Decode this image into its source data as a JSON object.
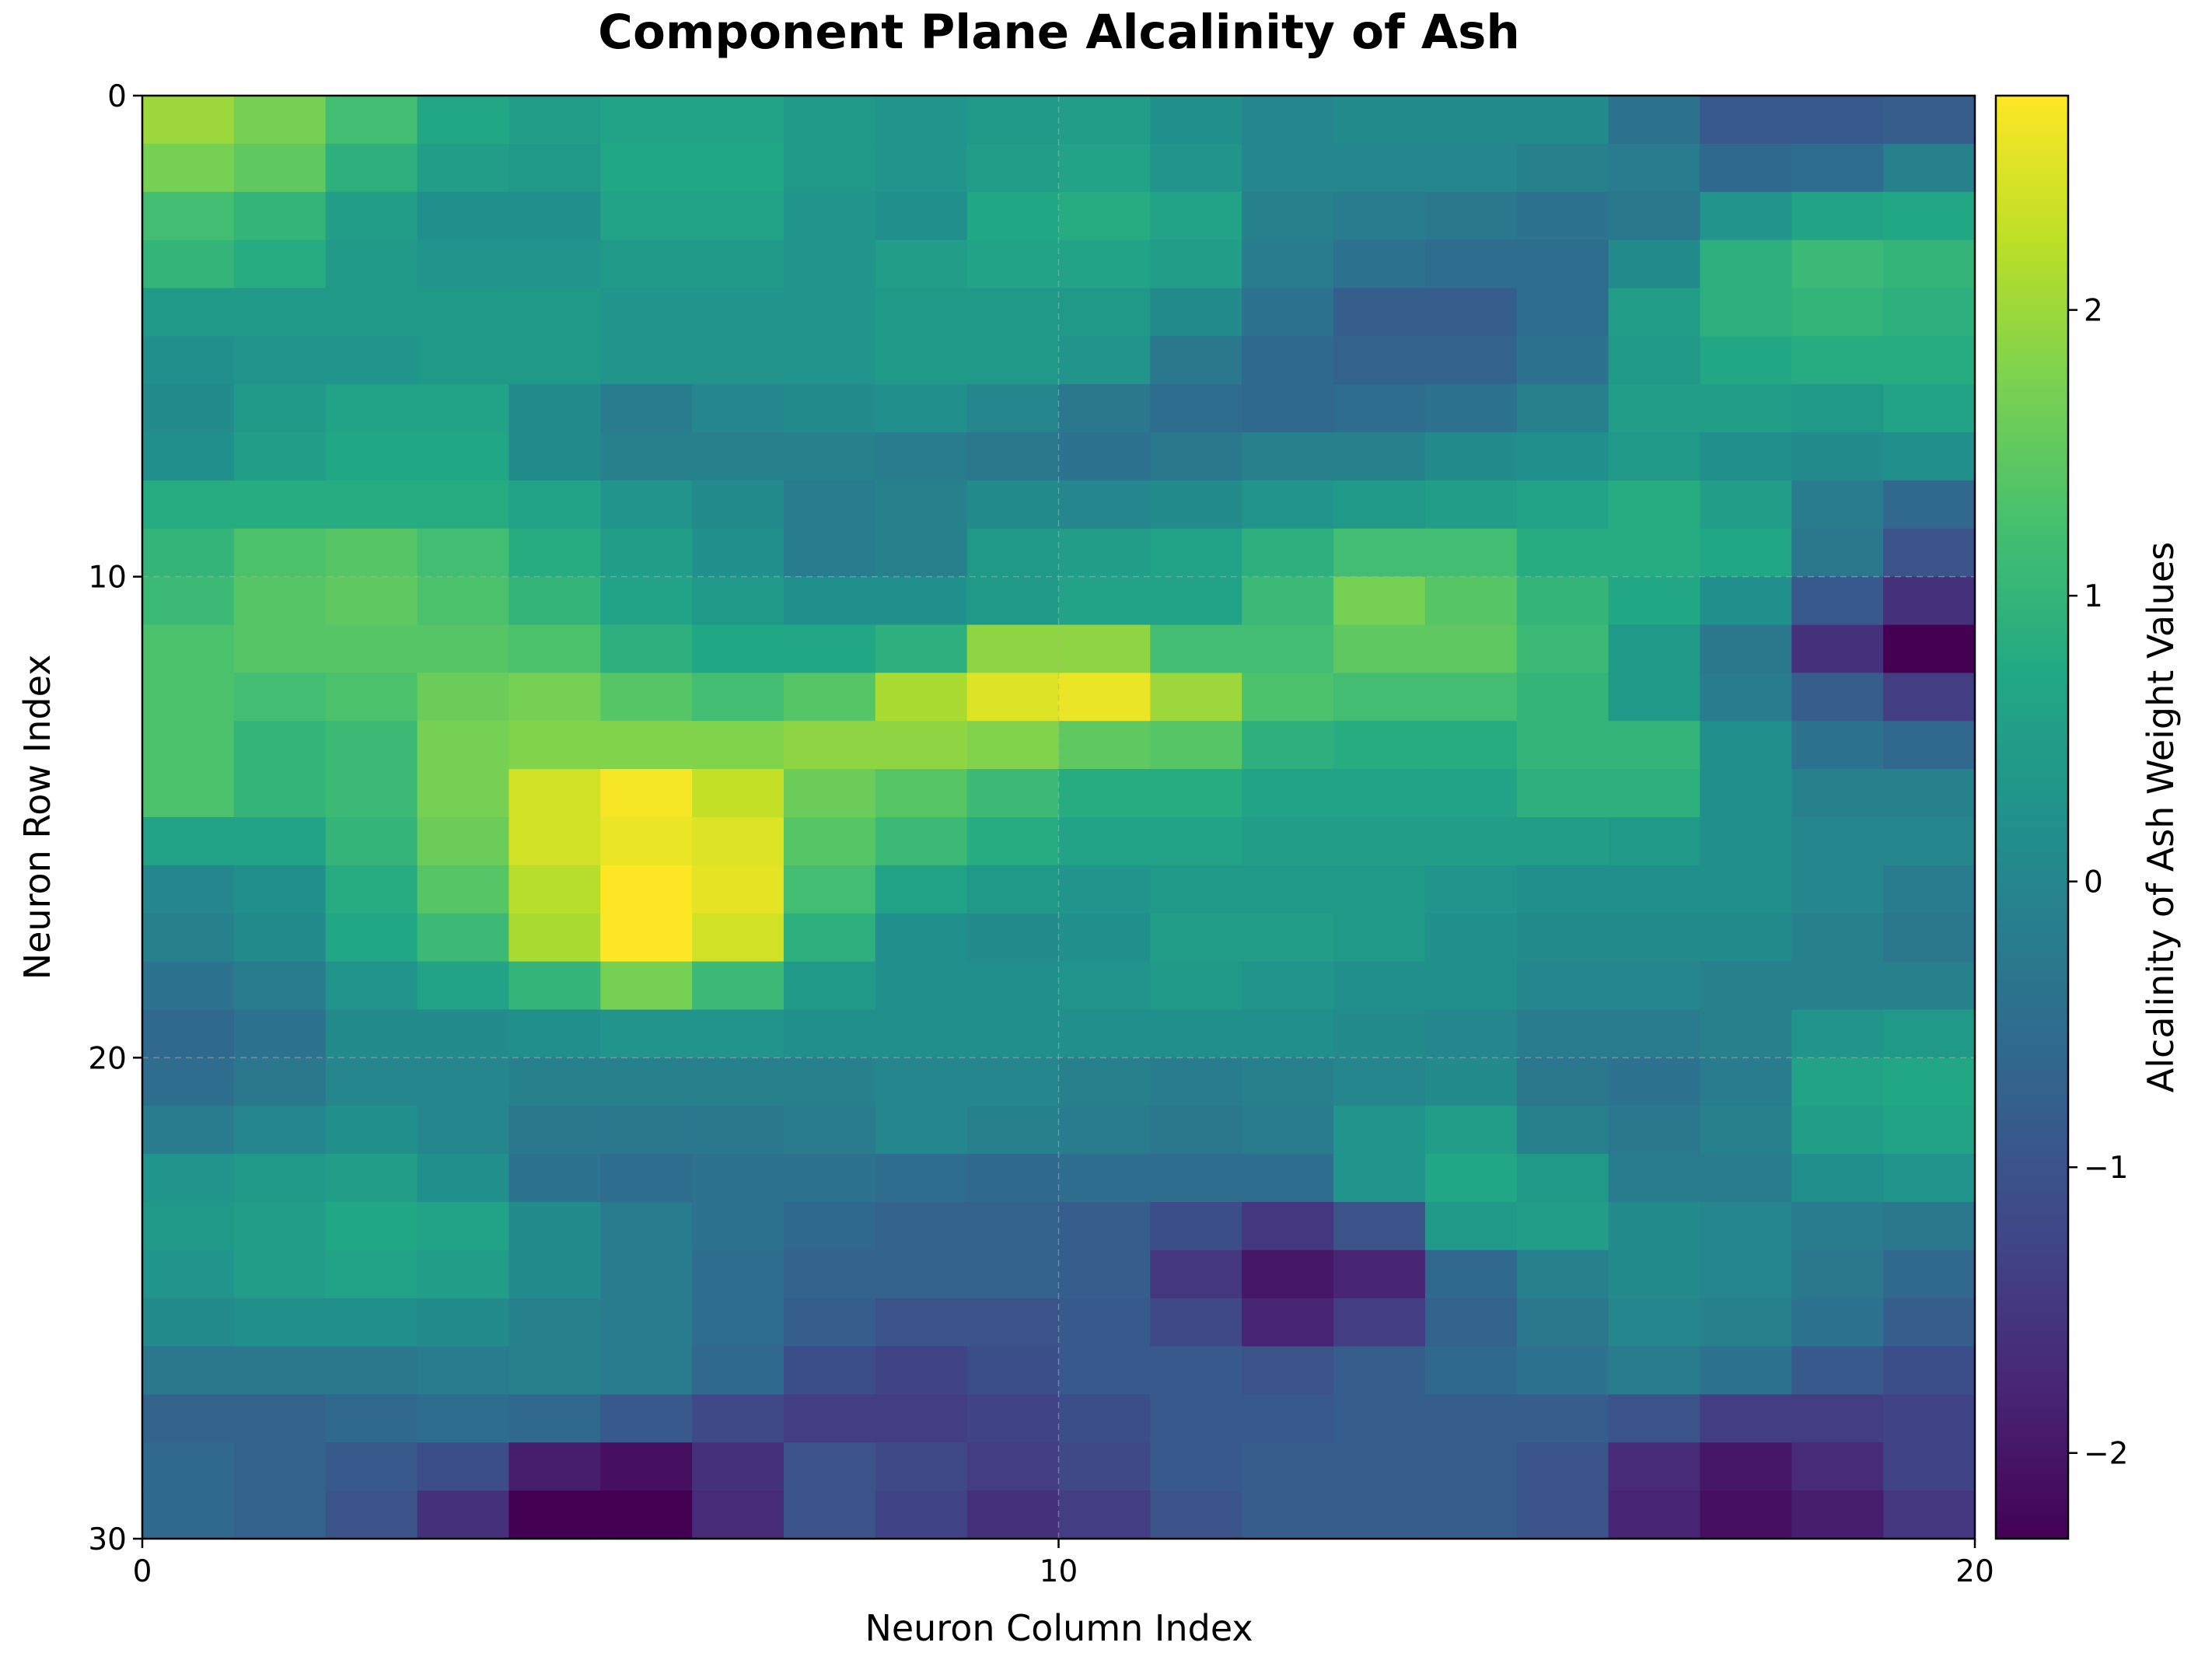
{
  "chart_data": {
    "type": "heatmap",
    "title": "Component Plane Alcalinity of Ash",
    "xlabel": "Neuron Column Index",
    "ylabel": "Neuron Row Index",
    "colorbar_label": "Alcalinity of Ash Weight Values",
    "colormap": "viridis",
    "x_ticks": [
      "0",
      "10",
      "20"
    ],
    "y_ticks": [
      "0",
      "10",
      "20",
      "30"
    ],
    "colorbar_ticks": [
      "−2",
      "−1",
      "0",
      "1",
      "2"
    ],
    "colorbar_tick_values": [
      -2,
      -1,
      0,
      1,
      2
    ],
    "vmin": -2.3,
    "vmax": 2.75,
    "xlim": [
      0,
      20
    ],
    "ylim": [
      30,
      0
    ],
    "grid": true,
    "rows": 30,
    "cols": 20,
    "values": [
      [
        2.0,
        1.7,
        1.2,
        0.7,
        0.5,
        0.6,
        0.6,
        0.4,
        0.3,
        0.4,
        0.5,
        0.2,
        0.0,
        0.1,
        0.1,
        0.1,
        -0.4,
        -0.9,
        -0.9,
        -0.8
      ],
      [
        1.7,
        1.5,
        0.9,
        0.5,
        0.4,
        0.7,
        0.7,
        0.4,
        0.3,
        0.5,
        0.6,
        0.3,
        0.0,
        0.0,
        0.0,
        -0.1,
        -0.2,
        -0.6,
        -0.5,
        -0.1
      ],
      [
        1.2,
        1.0,
        0.5,
        0.2,
        0.2,
        0.6,
        0.6,
        0.3,
        0.2,
        0.7,
        0.8,
        0.6,
        -0.1,
        -0.2,
        -0.3,
        -0.4,
        -0.3,
        0.3,
        0.6,
        0.7
      ],
      [
        1.0,
        0.8,
        0.4,
        0.3,
        0.3,
        0.4,
        0.4,
        0.3,
        0.5,
        0.6,
        0.6,
        0.5,
        -0.2,
        -0.4,
        -0.5,
        -0.5,
        0.1,
        0.9,
        1.1,
        1.0
      ],
      [
        0.4,
        0.4,
        0.4,
        0.4,
        0.4,
        0.3,
        0.3,
        0.3,
        0.4,
        0.4,
        0.4,
        0.1,
        -0.4,
        -0.8,
        -0.8,
        -0.5,
        0.5,
        0.9,
        1.0,
        0.9
      ],
      [
        0.2,
        0.3,
        0.3,
        0.4,
        0.4,
        0.3,
        0.3,
        0.3,
        0.4,
        0.4,
        0.3,
        -0.3,
        -0.6,
        -0.7,
        -0.7,
        -0.4,
        0.4,
        0.7,
        0.8,
        0.8
      ],
      [
        0.1,
        0.4,
        0.6,
        0.6,
        0.1,
        -0.2,
        0.0,
        0.1,
        0.2,
        0.0,
        -0.3,
        -0.5,
        -0.6,
        -0.5,
        -0.4,
        -0.1,
        0.5,
        0.5,
        0.4,
        0.6
      ],
      [
        0.2,
        0.5,
        0.7,
        0.7,
        0.1,
        -0.1,
        -0.1,
        -0.1,
        -0.2,
        -0.3,
        -0.4,
        -0.3,
        -0.1,
        -0.1,
        0.1,
        0.2,
        0.4,
        0.2,
        0.1,
        0.2
      ],
      [
        0.8,
        0.8,
        0.8,
        0.8,
        0.6,
        0.3,
        0.1,
        -0.2,
        -0.1,
        0.1,
        0.0,
        0.1,
        0.3,
        0.4,
        0.5,
        0.6,
        0.8,
        0.5,
        -0.2,
        -0.6
      ],
      [
        1.0,
        1.3,
        1.4,
        1.2,
        0.8,
        0.5,
        0.2,
        -0.2,
        -0.1,
        0.4,
        0.5,
        0.6,
        0.9,
        1.2,
        1.2,
        0.8,
        0.8,
        0.7,
        -0.3,
        -1.0
      ],
      [
        1.1,
        1.4,
        1.5,
        1.3,
        1.0,
        0.6,
        0.4,
        0.2,
        0.2,
        0.4,
        0.6,
        0.6,
        1.1,
        1.7,
        1.4,
        1.0,
        0.7,
        0.2,
        -0.9,
        -1.6
      ],
      [
        1.3,
        1.4,
        1.4,
        1.4,
        1.3,
        0.9,
        0.7,
        0.7,
        0.9,
        1.9,
        1.9,
        1.2,
        1.2,
        1.5,
        1.5,
        1.1,
        0.4,
        -0.3,
        -1.6,
        -2.3
      ],
      [
        1.3,
        1.2,
        1.3,
        1.6,
        1.7,
        1.4,
        1.2,
        1.4,
        2.1,
        2.5,
        2.6,
        2.0,
        1.3,
        1.2,
        1.2,
        1.0,
        0.4,
        -0.2,
        -0.8,
        -1.4
      ],
      [
        1.3,
        1.0,
        1.1,
        1.7,
        1.8,
        1.8,
        1.8,
        1.9,
        1.9,
        1.8,
        1.5,
        1.4,
        0.9,
        0.8,
        0.8,
        1.0,
        1.0,
        0.2,
        -0.4,
        -0.6
      ],
      [
        1.3,
        1.0,
        1.1,
        1.7,
        2.4,
        2.7,
        2.3,
        1.6,
        1.4,
        1.1,
        0.8,
        0.8,
        0.6,
        0.6,
        0.6,
        0.9,
        0.9,
        0.2,
        -0.1,
        -0.1
      ],
      [
        0.6,
        0.6,
        1.0,
        1.6,
        2.4,
        2.6,
        2.5,
        1.4,
        1.1,
        0.8,
        0.6,
        0.6,
        0.5,
        0.5,
        0.5,
        0.5,
        0.4,
        0.2,
        0.0,
        0.0
      ],
      [
        0.0,
        0.2,
        0.8,
        1.4,
        2.2,
        2.75,
        2.55,
        1.2,
        0.6,
        0.4,
        0.3,
        0.4,
        0.4,
        0.4,
        0.3,
        0.2,
        0.2,
        0.2,
        0.0,
        -0.2
      ],
      [
        -0.1,
        0.1,
        0.7,
        1.1,
        2.1,
        2.75,
        2.4,
        0.9,
        0.2,
        0.1,
        0.2,
        0.5,
        0.5,
        0.4,
        0.2,
        0.1,
        0.1,
        0.1,
        -0.1,
        -0.3
      ],
      [
        -0.4,
        -0.2,
        0.3,
        0.6,
        1.0,
        1.7,
        1.1,
        0.4,
        0.2,
        0.2,
        0.3,
        0.4,
        0.3,
        0.2,
        0.2,
        0.0,
        0.0,
        -0.1,
        -0.1,
        -0.1
      ],
      [
        -0.6,
        -0.4,
        0.1,
        0.1,
        0.2,
        0.3,
        0.3,
        0.2,
        0.2,
        0.2,
        0.2,
        0.2,
        0.2,
        0.1,
        0.0,
        -0.2,
        -0.2,
        -0.1,
        0.3,
        0.4
      ],
      [
        -0.5,
        -0.3,
        0.0,
        0.0,
        -0.1,
        -0.1,
        -0.1,
        -0.1,
        0.0,
        0.0,
        -0.1,
        -0.2,
        -0.1,
        0.0,
        0.1,
        -0.3,
        -0.4,
        -0.2,
        0.6,
        0.7
      ],
      [
        -0.2,
        0.0,
        0.2,
        0.0,
        -0.3,
        -0.3,
        -0.3,
        -0.2,
        0.0,
        -0.1,
        -0.2,
        -0.3,
        -0.2,
        0.3,
        0.5,
        -0.1,
        -0.3,
        -0.1,
        0.5,
        0.6
      ],
      [
        0.3,
        0.4,
        0.5,
        0.2,
        -0.4,
        -0.5,
        -0.4,
        -0.4,
        -0.5,
        -0.6,
        -0.5,
        -0.5,
        -0.5,
        0.3,
        0.7,
        0.4,
        -0.2,
        -0.2,
        0.2,
        0.3
      ],
      [
        0.4,
        0.5,
        0.7,
        0.6,
        0.1,
        -0.2,
        -0.4,
        -0.6,
        -0.7,
        -0.7,
        -0.8,
        -1.1,
        -1.5,
        -1.0,
        0.4,
        0.5,
        0.1,
        0.0,
        -0.2,
        -0.3
      ],
      [
        0.3,
        0.5,
        0.6,
        0.5,
        0.1,
        -0.2,
        -0.5,
        -0.7,
        -0.7,
        -0.7,
        -0.8,
        -1.5,
        -2.0,
        -1.8,
        -0.6,
        -0.1,
        0.1,
        0.0,
        -0.3,
        -0.6
      ],
      [
        0.1,
        0.2,
        0.2,
        0.1,
        -0.1,
        -0.2,
        -0.5,
        -0.8,
        -1.0,
        -1.0,
        -0.9,
        -1.2,
        -1.8,
        -1.4,
        -0.7,
        -0.3,
        0.0,
        -0.1,
        -0.4,
        -0.8
      ],
      [
        -0.3,
        -0.3,
        -0.3,
        -0.2,
        -0.1,
        -0.2,
        -0.6,
        -1.1,
        -1.3,
        -1.1,
        -0.9,
        -0.9,
        -1.0,
        -0.8,
        -0.6,
        -0.4,
        -0.2,
        -0.4,
        -0.9,
        -1.1
      ],
      [
        -0.7,
        -0.7,
        -0.6,
        -0.5,
        -0.6,
        -0.9,
        -1.2,
        -1.4,
        -1.4,
        -1.3,
        -1.1,
        -0.9,
        -0.9,
        -0.8,
        -0.8,
        -0.8,
        -1.0,
        -1.4,
        -1.4,
        -1.3
      ],
      [
        -0.6,
        -0.7,
        -0.9,
        -1.1,
        -1.9,
        -2.1,
        -1.6,
        -1.0,
        -1.2,
        -1.4,
        -1.2,
        -0.9,
        -0.8,
        -0.8,
        -0.8,
        -1.0,
        -1.7,
        -2.0,
        -1.7,
        -1.3
      ],
      [
        -0.6,
        -0.7,
        -1.0,
        -1.6,
        -2.3,
        -2.3,
        -1.7,
        -1.0,
        -1.3,
        -1.6,
        -1.4,
        -1.0,
        -0.8,
        -0.8,
        -0.8,
        -1.0,
        -1.8,
        -2.1,
        -1.9,
        -1.5
      ]
    ]
  }
}
